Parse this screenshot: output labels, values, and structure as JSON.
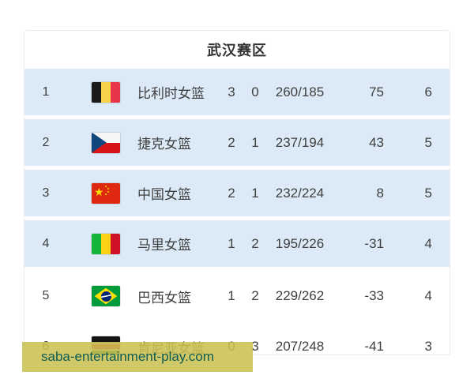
{
  "header": {
    "title": "武汉赛区"
  },
  "standings": {
    "rows": [
      {
        "rank": "1",
        "flag": "belgium",
        "team": "比利时女篮",
        "wins": "3",
        "losses": "0",
        "score": "260/185",
        "diff": "75",
        "points": "6",
        "highlighted": true
      },
      {
        "rank": "2",
        "flag": "czech",
        "team": "捷克女篮",
        "wins": "2",
        "losses": "1",
        "score": "237/194",
        "diff": "43",
        "points": "5",
        "highlighted": true
      },
      {
        "rank": "3",
        "flag": "china",
        "team": "中国女篮",
        "wins": "2",
        "losses": "1",
        "score": "232/224",
        "diff": "8",
        "points": "5",
        "highlighted": true
      },
      {
        "rank": "4",
        "flag": "mali",
        "team": "马里女篮",
        "wins": "1",
        "losses": "2",
        "score": "195/226",
        "diff": "-31",
        "points": "4",
        "highlighted": true
      },
      {
        "rank": "5",
        "flag": "brazil",
        "team": "巴西女篮",
        "wins": "1",
        "losses": "2",
        "score": "229/262",
        "diff": "-33",
        "points": "4",
        "highlighted": false
      },
      {
        "rank": "6",
        "flag": "kenya",
        "team": "肯尼亚女篮",
        "wins": "0",
        "losses": "3",
        "score": "207/248",
        "diff": "-41",
        "points": "3",
        "highlighted": false
      }
    ]
  },
  "banner": {
    "link_text": "saba-entertainment-play.com"
  },
  "colors": {
    "row_highlight": "#dbeaf6",
    "banner_bg": "rgba(203,192,83,0.88)",
    "banner_text": "#0f5c52",
    "text": "#3f3f3f"
  }
}
